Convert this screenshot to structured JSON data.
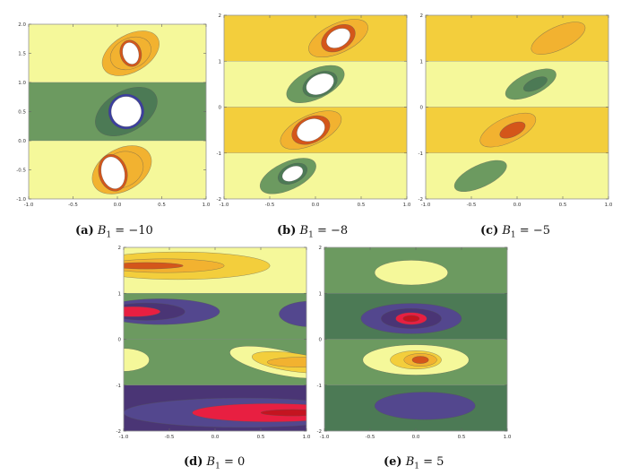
{
  "colors": {
    "pale_yellow": "#f5f89a",
    "yellow": "#f3ce3c",
    "orange": "#f2b230",
    "dark_orange": "#d4561a",
    "red": "#e81f41",
    "dark_red": "#c41420",
    "white": "#ffffff",
    "green": "#6c9a60",
    "dark_green": "#4c7a55",
    "navy": "#53478e",
    "purple": "#4a3575",
    "blue": "#3b3fa0",
    "frame": "#999999"
  },
  "chart_data": [
    {
      "type": "contour",
      "label": "(a)",
      "symbol": "B",
      "subscript": "1",
      "value_text": " = −10",
      "param_value": -10,
      "xlim": [
        -1,
        1
      ],
      "ylim": [
        -1,
        2
      ],
      "xticks": [
        "-1.0",
        "-0.5",
        "0.0",
        "0.5",
        "1.0"
      ],
      "yticks": [
        "-1.0",
        "-0.5",
        "0.0",
        "0.5",
        "1.0",
        "1.5",
        "2.0"
      ],
      "bands": [
        {
          "y0": 1.0,
          "y1": 2.0,
          "color": "pale_yellow"
        },
        {
          "y0": 0.0,
          "y1": 1.0,
          "color": "green"
        },
        {
          "y0": -1.0,
          "y1": 0.0,
          "color": "pale_yellow"
        }
      ],
      "blobs": [
        {
          "cx": 0.15,
          "cy": 1.5,
          "rx": 0.35,
          "ry": 0.32,
          "rot": 30,
          "color": "orange"
        },
        {
          "cx": 0.15,
          "cy": 1.5,
          "rx": 0.24,
          "ry": 0.26,
          "rot": 25,
          "color": "orange"
        },
        {
          "cx": 0.15,
          "cy": 1.5,
          "rx": 0.12,
          "ry": 0.23,
          "rot": 15,
          "color": "dark_orange"
        },
        {
          "cx": 0.15,
          "cy": 1.5,
          "rx": 0.09,
          "ry": 0.19,
          "rot": 15,
          "color": "white"
        },
        {
          "cx": 0.1,
          "cy": 0.5,
          "rx": 0.38,
          "ry": 0.35,
          "rot": 30,
          "color": "dark_green"
        },
        {
          "cx": 0.1,
          "cy": 0.5,
          "rx": 0.2,
          "ry": 0.3,
          "rot": 15,
          "color": "blue"
        },
        {
          "cx": 0.1,
          "cy": 0.5,
          "rx": 0.17,
          "ry": 0.26,
          "rot": 15,
          "color": "white"
        },
        {
          "cx": 0.05,
          "cy": -0.5,
          "rx": 0.36,
          "ry": 0.36,
          "rot": 30,
          "color": "orange"
        },
        {
          "cx": 0.05,
          "cy": -0.5,
          "rx": 0.25,
          "ry": 0.3,
          "rot": 25,
          "color": "orange"
        },
        {
          "cx": -0.05,
          "cy": -0.55,
          "rx": 0.16,
          "ry": 0.32,
          "rot": 15,
          "color": "dark_orange"
        },
        {
          "cx": -0.05,
          "cy": -0.55,
          "rx": 0.13,
          "ry": 0.28,
          "rot": 15,
          "color": "white"
        }
      ]
    },
    {
      "type": "contour",
      "label": "(b)",
      "symbol": "B",
      "subscript": "1",
      "value_text": " = −8",
      "param_value": -8,
      "xlim": [
        -1,
        1
      ],
      "ylim": [
        -2,
        2
      ],
      "xticks": [
        "-1.0",
        "-0.5",
        "0.0",
        "0.5",
        "1.0"
      ],
      "yticks": [
        "-2",
        "-1",
        "0",
        "1",
        "2"
      ],
      "bands": [
        {
          "y0": 1.0,
          "y1": 2.0,
          "color": "yellow"
        },
        {
          "y0": 0.0,
          "y1": 1.0,
          "color": "pale_yellow"
        },
        {
          "y0": -1.0,
          "y1": 0.0,
          "color": "yellow"
        },
        {
          "y0": -2.0,
          "y1": -1.0,
          "color": "pale_yellow"
        }
      ],
      "blobs": [
        {
          "cx": 0.25,
          "cy": 1.5,
          "rx": 0.35,
          "ry": 0.32,
          "rot": 25,
          "color": "orange"
        },
        {
          "cx": 0.25,
          "cy": 1.5,
          "rx": 0.2,
          "ry": 0.26,
          "rot": 30,
          "color": "dark_orange"
        },
        {
          "cx": 0.25,
          "cy": 1.5,
          "rx": 0.14,
          "ry": 0.19,
          "rot": 30,
          "color": "white"
        },
        {
          "cx": 0.0,
          "cy": 0.5,
          "rx": 0.34,
          "ry": 0.32,
          "rot": 25,
          "color": "green"
        },
        {
          "cx": 0.05,
          "cy": 0.5,
          "rx": 0.2,
          "ry": 0.25,
          "rot": 25,
          "color": "dark_green"
        },
        {
          "cx": 0.05,
          "cy": 0.5,
          "rx": 0.16,
          "ry": 0.21,
          "rot": 25,
          "color": "white"
        },
        {
          "cx": -0.05,
          "cy": -0.5,
          "rx": 0.36,
          "ry": 0.32,
          "rot": 25,
          "color": "orange"
        },
        {
          "cx": -0.05,
          "cy": -0.5,
          "rx": 0.22,
          "ry": 0.28,
          "rot": 25,
          "color": "dark_orange"
        },
        {
          "cx": -0.05,
          "cy": -0.5,
          "rx": 0.16,
          "ry": 0.23,
          "rot": 25,
          "color": "white"
        },
        {
          "cx": -0.3,
          "cy": -1.5,
          "rx": 0.33,
          "ry": 0.3,
          "rot": 25,
          "color": "green"
        },
        {
          "cx": -0.25,
          "cy": -1.45,
          "rx": 0.17,
          "ry": 0.2,
          "rot": 25,
          "color": "dark_green"
        },
        {
          "cx": -0.25,
          "cy": -1.45,
          "rx": 0.12,
          "ry": 0.15,
          "rot": 25,
          "color": "white"
        }
      ]
    },
    {
      "type": "contour",
      "label": "(c)",
      "symbol": "B",
      "subscript": "1",
      "value_text": " = −5",
      "param_value": -5,
      "xlim": [
        -1,
        1
      ],
      "ylim": [
        -2,
        2
      ],
      "xticks": [
        "-1.0",
        "-0.5",
        "0.0",
        "0.5",
        "1.0"
      ],
      "yticks": [
        "-2",
        "-1",
        "0",
        "1",
        "2"
      ],
      "bands": [
        {
          "y0": 1.0,
          "y1": 2.0,
          "color": "yellow"
        },
        {
          "y0": 0.0,
          "y1": 1.0,
          "color": "pale_yellow"
        },
        {
          "y0": -1.0,
          "y1": 0.0,
          "color": "yellow"
        },
        {
          "y0": -2.0,
          "y1": -1.0,
          "color": "pale_yellow"
        }
      ],
      "blobs": [
        {
          "cx": 0.45,
          "cy": 1.5,
          "rx": 0.32,
          "ry": 0.25,
          "rot": 25,
          "color": "orange"
        },
        {
          "cx": 0.15,
          "cy": 0.5,
          "rx": 0.3,
          "ry": 0.24,
          "rot": 25,
          "color": "green"
        },
        {
          "cx": 0.2,
          "cy": 0.5,
          "rx": 0.14,
          "ry": 0.12,
          "rot": 25,
          "color": "dark_green"
        },
        {
          "cx": -0.1,
          "cy": -0.5,
          "rx": 0.33,
          "ry": 0.27,
          "rot": 25,
          "color": "orange"
        },
        {
          "cx": -0.05,
          "cy": -0.5,
          "rx": 0.15,
          "ry": 0.14,
          "rot": 25,
          "color": "dark_orange"
        },
        {
          "cx": -0.4,
          "cy": -1.5,
          "rx": 0.31,
          "ry": 0.24,
          "rot": 25,
          "color": "green"
        }
      ]
    },
    {
      "type": "contour",
      "label": "(d)",
      "symbol": "B",
      "subscript": "1",
      "value_text": " = 0",
      "param_value": 0,
      "xlim": [
        -1,
        1
      ],
      "ylim": [
        -2,
        2
      ],
      "xticks": [
        "-1.0",
        "-0.5",
        "0.0",
        "0.5",
        "1.0"
      ],
      "yticks": [
        "-2",
        "-1",
        "0",
        "1",
        "2"
      ],
      "bands": [
        {
          "y0": 1.0,
          "y1": 2.0,
          "color": "pale_yellow"
        },
        {
          "y0": 0.0,
          "y1": 1.0,
          "color": "green"
        },
        {
          "y0": -1.0,
          "y1": 0.0,
          "color": "green"
        },
        {
          "y0": -2.0,
          "y1": -1.0,
          "color": "purple"
        }
      ],
      "blobs": [
        {
          "cx": -0.4,
          "cy": 1.6,
          "rx": 1.0,
          "ry": 0.3,
          "rot": 0,
          "color": "yellow"
        },
        {
          "cx": -0.55,
          "cy": 1.6,
          "rx": 0.65,
          "ry": 0.15,
          "rot": 0,
          "color": "orange"
        },
        {
          "cx": -0.75,
          "cy": 1.6,
          "rx": 0.4,
          "ry": 0.07,
          "rot": 0,
          "color": "dark_orange"
        },
        {
          "cx": -0.6,
          "cy": 0.6,
          "rx": 0.65,
          "ry": 0.28,
          "rot": 0,
          "color": "navy"
        },
        {
          "cx": -0.75,
          "cy": 0.6,
          "rx": 0.42,
          "ry": 0.19,
          "rot": 0,
          "color": "purple"
        },
        {
          "cx": -0.9,
          "cy": 0.6,
          "rx": 0.3,
          "ry": 0.11,
          "rot": 0,
          "color": "red"
        },
        {
          "cx": 1.05,
          "cy": 0.55,
          "rx": 0.35,
          "ry": 0.28,
          "rot": 0,
          "color": "navy"
        },
        {
          "cx": -1.0,
          "cy": -0.45,
          "rx": 0.28,
          "ry": 0.25,
          "rot": 0,
          "color": "pale_yellow"
        },
        {
          "cx": 0.7,
          "cy": -0.5,
          "rx": 0.55,
          "ry": 0.27,
          "rot": -12,
          "color": "pale_yellow"
        },
        {
          "cx": 0.85,
          "cy": -0.5,
          "rx": 0.45,
          "ry": 0.2,
          "rot": -8,
          "color": "yellow"
        },
        {
          "cx": 0.95,
          "cy": -0.5,
          "rx": 0.38,
          "ry": 0.11,
          "rot": 0,
          "color": "orange"
        },
        {
          "cx": 0.3,
          "cy": -1.6,
          "rx": 1.3,
          "ry": 0.32,
          "rot": 0,
          "color": "navy"
        },
        {
          "cx": 0.6,
          "cy": -1.6,
          "rx": 0.85,
          "ry": 0.2,
          "rot": 0,
          "color": "red"
        },
        {
          "cx": 0.85,
          "cy": -1.6,
          "rx": 0.35,
          "ry": 0.07,
          "rot": 0,
          "color": "dark_red"
        }
      ]
    },
    {
      "type": "contour",
      "label": "(e)",
      "symbol": "B",
      "subscript": "1",
      "value_text": " = 5",
      "param_value": 5,
      "xlim": [
        -1,
        1
      ],
      "ylim": [
        -2,
        2
      ],
      "xticks": [
        "-1.0",
        "-0.5",
        "0.0",
        "0.5",
        "1.0"
      ],
      "yticks": [
        "-2",
        "-1",
        "0",
        "1",
        "2"
      ],
      "bands": [
        {
          "y0": 1.0,
          "y1": 2.0,
          "color": "green"
        },
        {
          "y0": 0.0,
          "y1": 1.0,
          "color": "dark_green"
        },
        {
          "y0": -1.0,
          "y1": 0.0,
          "color": "green"
        },
        {
          "y0": -2.0,
          "y1": -1.0,
          "color": "dark_green"
        }
      ],
      "blobs": [
        {
          "cx": -0.05,
          "cy": 1.45,
          "rx": 0.4,
          "ry": 0.27,
          "rot": 0,
          "color": "pale_yellow"
        },
        {
          "cx": -0.05,
          "cy": 0.45,
          "rx": 0.55,
          "ry": 0.33,
          "rot": 0,
          "color": "navy"
        },
        {
          "cx": -0.05,
          "cy": 0.45,
          "rx": 0.33,
          "ry": 0.22,
          "rot": 0,
          "color": "purple"
        },
        {
          "cx": -0.05,
          "cy": 0.45,
          "rx": 0.17,
          "ry": 0.13,
          "rot": 0,
          "color": "red"
        },
        {
          "cx": -0.05,
          "cy": 0.45,
          "rx": 0.09,
          "ry": 0.07,
          "rot": 0,
          "color": "dark_red"
        },
        {
          "cx": 0.0,
          "cy": -0.45,
          "rx": 0.58,
          "ry": 0.33,
          "rot": 0,
          "color": "pale_yellow"
        },
        {
          "cx": 0.0,
          "cy": -0.45,
          "rx": 0.28,
          "ry": 0.2,
          "rot": 0,
          "color": "yellow"
        },
        {
          "cx": 0.05,
          "cy": -0.45,
          "rx": 0.18,
          "ry": 0.14,
          "rot": 0,
          "color": "orange"
        },
        {
          "cx": 0.05,
          "cy": -0.45,
          "rx": 0.09,
          "ry": 0.08,
          "rot": 0,
          "color": "dark_orange"
        },
        {
          "cx": 0.1,
          "cy": -1.45,
          "rx": 0.55,
          "ry": 0.3,
          "rot": 0,
          "color": "navy"
        }
      ]
    }
  ]
}
